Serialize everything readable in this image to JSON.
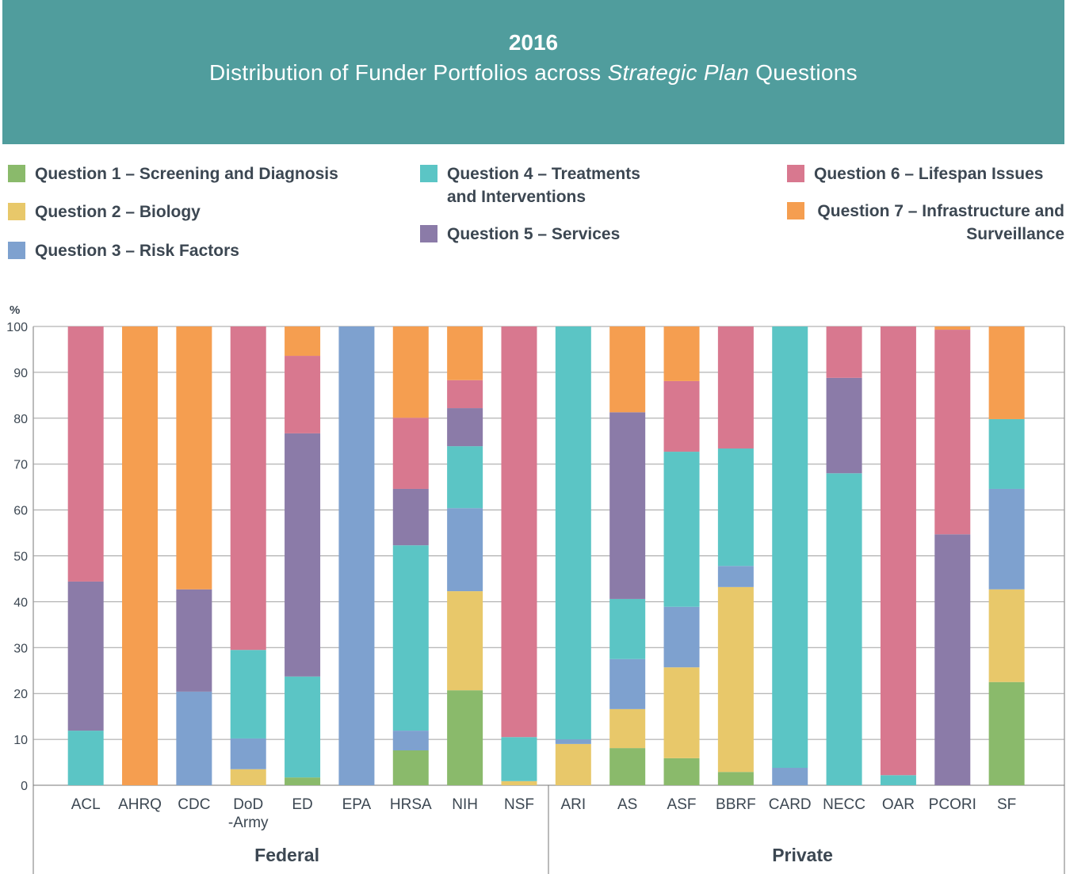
{
  "chart_data": {
    "type": "stacked_bar",
    "title": {
      "year": "2016",
      "text": [
        "Distribution of Funder Portfolios across",
        "Strategic Plan",
        "Questions"
      ]
    },
    "y_label": "%",
    "groups": [
      {
        "name": "Federal",
        "categories": [
          "ACL",
          "AHRQ",
          "CDC",
          "DoD\n-Army",
          "ED",
          "EPA",
          "HRSA",
          "NIH",
          "NSF"
        ]
      },
      {
        "name": "Private",
        "categories": [
          "ARI",
          "AS",
          "ASF",
          "BBRF",
          "CARD",
          "NECC",
          "OAR",
          "PCORI",
          "SF"
        ]
      }
    ],
    "series": [
      {
        "name": "Question 1 – Screening and Diagnosis",
        "color": "#8aba6b",
        "values": [
          0,
          0,
          0,
          0,
          1.7,
          0,
          7.6,
          20.7,
          0,
          0,
          8.1,
          5.9,
          2.9,
          0,
          0,
          0,
          0,
          22.5
        ]
      },
      {
        "name": "Question 2 – Biology",
        "color": "#e8c86a",
        "values": [
          0,
          0,
          0,
          3.5,
          0,
          0,
          0,
          21.6,
          0.9,
          9,
          8.5,
          19.8,
          40.3,
          0,
          0,
          0,
          0,
          20.2
        ]
      },
      {
        "name": "Question 3 – Risk Factors",
        "color": "#7ea1cf",
        "values": [
          0,
          0,
          20.4,
          6.7,
          0,
          100,
          4.3,
          18.1,
          0,
          1,
          10.9,
          13.2,
          4.6,
          3.8,
          0,
          0,
          0,
          21.9
        ]
      },
      {
        "name": "Question 4 – Treatments and Interventions",
        "color": "#5bc5c5",
        "values": [
          11.9,
          0,
          0,
          19.3,
          22,
          0,
          40.4,
          13.5,
          9.6,
          90,
          13.1,
          33.8,
          25.6,
          96.2,
          68,
          2.2,
          0,
          15.2
        ]
      },
      {
        "name": "Question 5 – Services",
        "color": "#8b7ba8",
        "values": [
          32.5,
          0,
          22.3,
          0,
          53,
          0,
          12.3,
          8.3,
          0,
          0,
          40.7,
          0,
          0,
          0,
          20.8,
          0,
          54.7,
          0
        ]
      },
      {
        "name": "Question 6 – Lifespan Issues",
        "color": "#d8788f",
        "values": [
          55.6,
          0,
          0,
          70.5,
          16.9,
          0,
          15.5,
          6.1,
          89.5,
          0,
          0,
          15.4,
          26.6,
          0,
          11.2,
          97.8,
          44.6,
          0
        ]
      },
      {
        "name": "Question 7 – Infrastructure and Surveillance",
        "color": "#f59e50",
        "values": [
          0,
          100,
          57.3,
          0,
          6.4,
          0,
          19.9,
          11.7,
          0,
          0,
          18.7,
          11.9,
          0,
          0,
          0,
          0,
          0.7,
          20.2
        ]
      }
    ],
    "ylim": [
      0,
      100
    ],
    "yticks": [
      0,
      10,
      20,
      30,
      40,
      50,
      60,
      70,
      80,
      90,
      100
    ],
    "grid": true
  }
}
